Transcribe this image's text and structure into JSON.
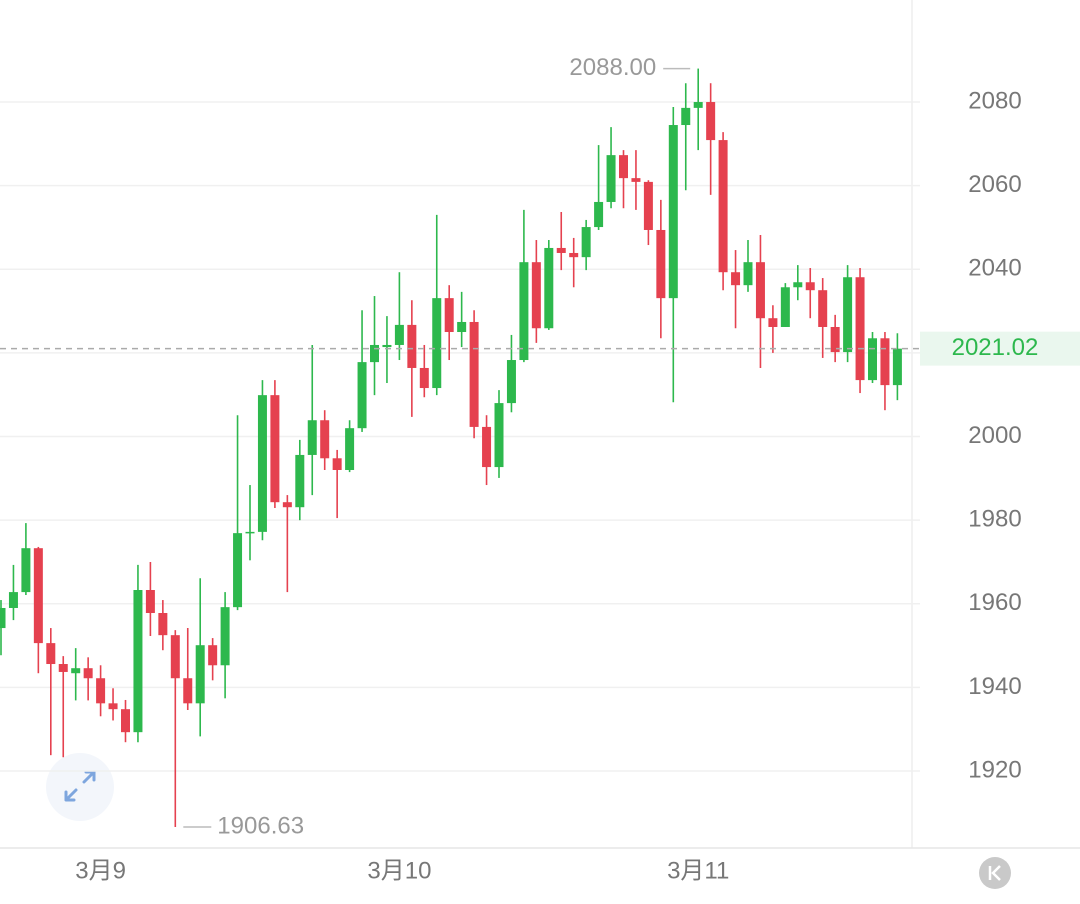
{
  "chart_data": {
    "type": "candlestick",
    "categories": [
      null,
      null,
      null,
      null,
      null,
      null,
      null,
      null,
      "3月9",
      null,
      null,
      null,
      null,
      null,
      null,
      null,
      null,
      null,
      null,
      null,
      null,
      null,
      null,
      null,
      null,
      null,
      null,
      null,
      null,
      null,
      null,
      null,
      "3月10",
      null,
      null,
      null,
      null,
      null,
      null,
      null,
      null,
      null,
      null,
      null,
      null,
      null,
      null,
      null,
      null,
      null,
      null,
      null,
      null,
      null,
      null,
      null,
      "3月11",
      null,
      null,
      null,
      null,
      null,
      null,
      null,
      null,
      null,
      null,
      null,
      null,
      null,
      null,
      null,
      null
    ],
    "open": [
      1954.2,
      1959.0,
      1962.8,
      1973.3,
      1950.6,
      1945.6,
      1943.4,
      1944.6,
      1942.2,
      1936.2,
      1934.8,
      1929.3,
      1963.3,
      1957.8,
      1952.5,
      1942.2,
      1936.2,
      1950.1,
      1945.3,
      1959.2,
      1976.9,
      1977.2,
      2009.9,
      1984.3,
      1983.1,
      1995.6,
      2003.9,
      1994.8,
      1992.0,
      2002.0,
      2017.8,
      2021.4,
      2021.9,
      2026.7,
      2016.4,
      2011.6,
      2033.1,
      2025.0,
      2027.4,
      2002.3,
      1992.7,
      2008.0,
      2018.3,
      2041.7,
      2025.9,
      2045.1,
      2043.9,
      2042.9,
      2050.1,
      2056.1,
      2067.3,
      2061.8,
      2060.9,
      2049.4,
      2033.1,
      2074.5,
      2078.6,
      2080.0,
      2070.9,
      2039.3,
      2036.2,
      2041.7,
      2028.3,
      2026.2,
      2035.7,
      2036.9,
      2035.0,
      2026.2,
      2020.2,
      2038.1,
      2013.5,
      2023.5,
      2012.3
    ],
    "high": [
      1960.9,
      1969.3,
      1979.3,
      1973.6,
      1954.2,
      1947.5,
      1949.4,
      1947.2,
      1945.3,
      1939.8,
      1937.0,
      1969.3,
      1970.0,
      1960.9,
      1953.7,
      1954.2,
      1966.1,
      1951.8,
      1962.8,
      2005.1,
      1988.4,
      2013.5,
      2013.5,
      1986.0,
      1999.2,
      2021.9,
      2006.3,
      1996.8,
      2003.9,
      2030.2,
      2033.6,
      2028.8,
      2039.3,
      2032.6,
      2021.9,
      2053.0,
      2036.2,
      2034.6,
      2030.2,
      2005.1,
      2011.1,
      2024.3,
      2054.2,
      2047.0,
      2047.0,
      2053.7,
      2047.5,
      2051.8,
      2069.7,
      2074.0,
      2068.5,
      2068.5,
      2061.3,
      2056.6,
      2078.8,
      2084.5,
      2088.0,
      2084.5,
      2072.8,
      2044.6,
      2047.0,
      2048.2,
      2031.4,
      2036.7,
      2041.0,
      2040.3,
      2037.9,
      2029.1,
      2041.0,
      2040.3,
      2025.0,
      2025.0,
      2024.7
    ],
    "low": [
      1947.7,
      1956.1,
      1962.1,
      1943.4,
      1923.8,
      1923.3,
      1936.9,
      1936.9,
      1933.1,
      1932.1,
      1926.9,
      1926.9,
      1952.3,
      1948.9,
      1906.63,
      1934.6,
      1928.3,
      1941.7,
      1937.4,
      1958.5,
      1970.4,
      1975.2,
      1982.9,
      1962.8,
      1980.0,
      1986.0,
      1992.0,
      1980.5,
      1991.5,
      2001.1,
      2009.9,
      2012.8,
      2018.3,
      2004.7,
      2009.4,
      2009.9,
      2018.3,
      2021.4,
      1999.6,
      1988.4,
      1990.1,
      2005.8,
      2017.8,
      2022.4,
      2025.5,
      2039.8,
      2035.7,
      2039.8,
      2049.4,
      2054.6,
      2054.6,
      2054.2,
      2045.8,
      2023.5,
      2008.2,
      2058.9,
      2068.5,
      2057.8,
      2035.0,
      2025.9,
      2034.6,
      2016.4,
      2020.0,
      2026.2,
      2032.6,
      2028.3,
      2018.8,
      2017.8,
      2017.8,
      2010.4,
      2012.8,
      2006.3,
      2008.7
    ],
    "close": [
      1959.0,
      1962.8,
      1973.3,
      1950.6,
      1945.6,
      1943.7,
      1944.6,
      1942.2,
      1936.2,
      1934.8,
      1929.3,
      1963.3,
      1957.8,
      1952.5,
      1942.2,
      1936.2,
      1950.1,
      1945.3,
      1959.2,
      1976.9,
      1977.2,
      2009.9,
      1984.3,
      1983.1,
      1995.6,
      2003.9,
      1994.8,
      1992.0,
      2002.0,
      2017.8,
      2021.9,
      2021.9,
      2026.7,
      2016.4,
      2011.6,
      2033.1,
      2025.0,
      2027.4,
      2002.3,
      1992.7,
      2008.0,
      2018.3,
      2041.7,
      2025.9,
      2045.1,
      2043.9,
      2042.9,
      2050.1,
      2056.1,
      2067.3,
      2061.8,
      2060.9,
      2049.4,
      2033.1,
      2074.5,
      2078.6,
      2080.0,
      2070.9,
      2039.3,
      2036.2,
      2041.7,
      2028.3,
      2026.2,
      2035.7,
      2036.9,
      2035.0,
      2026.2,
      2020.2,
      2038.1,
      2013.5,
      2023.5,
      2012.3,
      2021.02
    ],
    "up_color": "#2db84d",
    "down_color": "#e5414f",
    "high_label": "2088.00",
    "low_label": "1906.63",
    "last_price": 2021.02,
    "ylim": [
      1901.6,
      2104.4
    ],
    "yticks": [
      1920,
      1940,
      1960,
      1980,
      2000,
      2020,
      2040,
      2060,
      2080
    ],
    "grid": true
  }
}
